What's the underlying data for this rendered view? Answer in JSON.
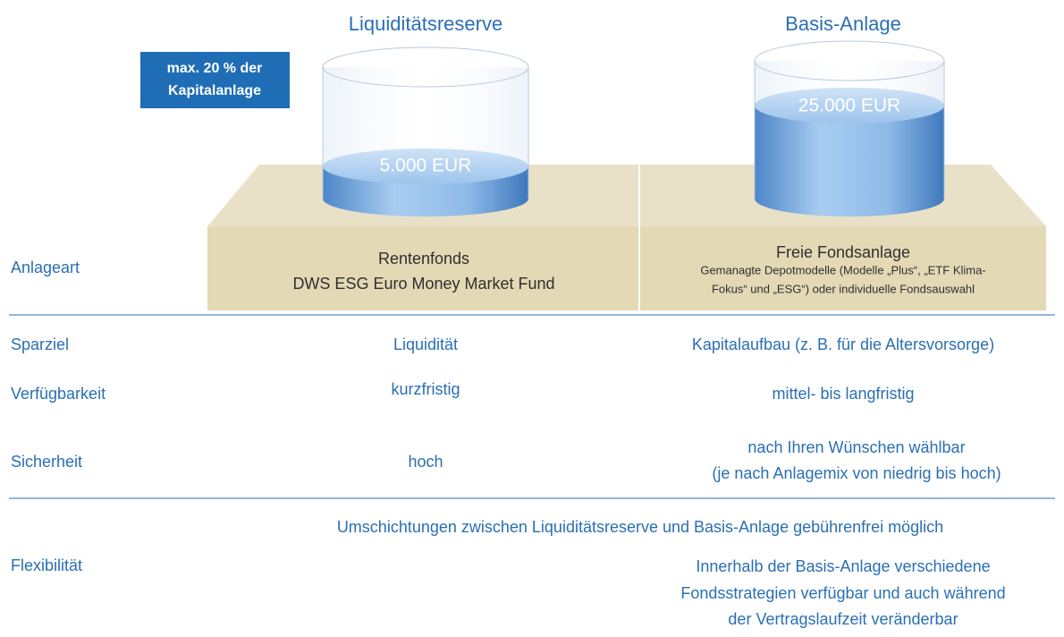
{
  "columns": [
    {
      "title": "Liquiditätsreserve",
      "amount": "5.000 EUR"
    },
    {
      "title": "Basis-Anlage",
      "amount": "25.000 EUR"
    }
  ],
  "badge": [
    "max. 20 % der",
    "Kapitalanlage"
  ],
  "anlageart": {
    "label": "Anlageart",
    "left": [
      "Rentenfonds",
      "DWS ESG Euro Money Market Fund"
    ],
    "right_title": "Freie Fondsanlage",
    "right_detail": [
      "Gemanagte Depotmodelle (Modelle „Plus“, „ETF Klima-",
      "Fokus“ und „ESG“) oder individuelle Fondsauswahl"
    ]
  },
  "rows": [
    {
      "label": "Sparziel",
      "left": [
        "Liquidität"
      ],
      "right": [
        "Kapitalaufbau (z. B. für die Altersvorsorge)"
      ]
    },
    {
      "label": "Verfügbarkeit",
      "left": [
        "kurzfristig"
      ],
      "right": [
        "mittel- bis langfristig"
      ]
    },
    {
      "label": "Sicherheit",
      "left": [
        "hoch"
      ],
      "right": [
        "nach Ihren Wünschen wählbar",
        "(je nach Anlagemix von niedrig bis hoch)"
      ]
    }
  ],
  "flexibility": {
    "label": "Flexibilität",
    "span": "Umschichtungen zwischen Liquiditätsreserve und Basis-Anlage gebührenfrei möglich",
    "right": [
      "Innerhalb der Basis-Anlage verschiedene",
      "Fondsstrategien verfügbar und auch während",
      "der Vertragslaufzeit veränderbar"
    ]
  }
}
